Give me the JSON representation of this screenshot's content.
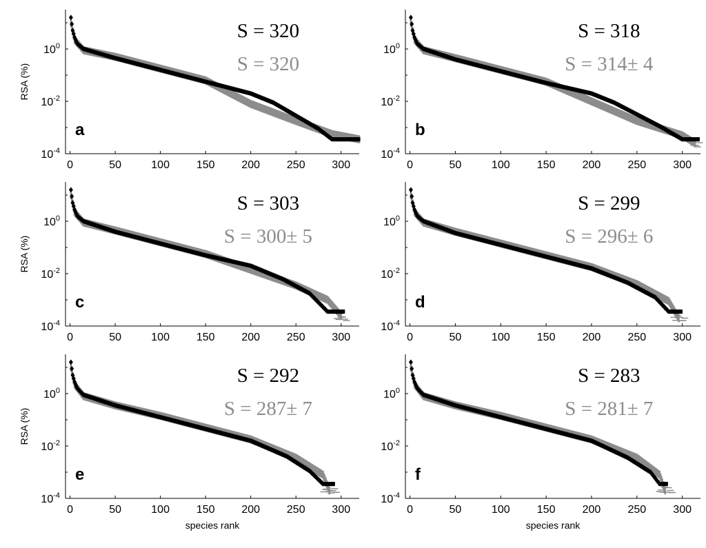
{
  "figure": {
    "xlabel": "species rank",
    "ylabel": "RSA (%)"
  },
  "colors": {
    "observed": "#000000",
    "model": "#8c8c8c",
    "axis": "#000000",
    "background": "#ffffff"
  },
  "chart_data": [
    {
      "panel": "a",
      "type": "scatter",
      "xlabel": "",
      "ylabel": "RSA (%)",
      "xlim": [
        -5,
        320
      ],
      "ylim_log10": [
        -4,
        1.5
      ],
      "xticks": [
        0,
        50,
        100,
        150,
        200,
        250,
        300
      ],
      "yticks": [
        "10^0",
        "10^-2",
        "10^-4"
      ],
      "observed_label": "S = 320",
      "model_label": "S = 320",
      "observed": {
        "S": 320,
        "profile": [
          [
            1,
            1.2
          ],
          [
            2,
            0.95
          ],
          [
            3,
            0.7
          ],
          [
            5,
            0.45
          ],
          [
            8,
            0.2
          ],
          [
            15,
            0.0
          ],
          [
            50,
            -0.35
          ],
          [
            100,
            -0.8
          ],
          [
            150,
            -1.25
          ],
          [
            200,
            -1.7
          ],
          [
            225,
            -2.05
          ],
          [
            250,
            -2.55
          ],
          [
            275,
            -3.05
          ],
          [
            290,
            -3.45
          ],
          [
            320,
            -3.45
          ]
        ]
      },
      "model": {
        "S": 320,
        "S_sd": 0,
        "profile": [
          [
            1,
            1.0
          ],
          [
            5,
            0.35
          ],
          [
            15,
            -0.05
          ],
          [
            50,
            -0.3
          ],
          [
            100,
            -0.75
          ],
          [
            150,
            -1.2
          ],
          [
            200,
            -2.1
          ],
          [
            250,
            -2.75
          ],
          [
            290,
            -3.25
          ],
          [
            320,
            -3.45
          ]
        ],
        "spread": 0.3
      }
    },
    {
      "panel": "b",
      "type": "scatter",
      "xlabel": "",
      "ylabel": "",
      "xlim": [
        -5,
        320
      ],
      "ylim_log10": [
        -4,
        1.5
      ],
      "xticks": [
        0,
        50,
        100,
        150,
        200,
        250,
        300
      ],
      "yticks": [
        "10^0",
        "10^-2",
        "10^-4"
      ],
      "observed_label": "S = 318",
      "model_label": "S = 314± 4",
      "observed": {
        "S": 318,
        "profile": [
          [
            1,
            1.2
          ],
          [
            2,
            0.95
          ],
          [
            3,
            0.7
          ],
          [
            5,
            0.45
          ],
          [
            8,
            0.2
          ],
          [
            15,
            0.0
          ],
          [
            50,
            -0.4
          ],
          [
            100,
            -0.85
          ],
          [
            150,
            -1.3
          ],
          [
            200,
            -1.7
          ],
          [
            225,
            -2.05
          ],
          [
            250,
            -2.5
          ],
          [
            275,
            -2.95
          ],
          [
            300,
            -3.45
          ],
          [
            318,
            -3.45
          ]
        ]
      },
      "model": {
        "S": 314,
        "S_sd": 4,
        "profile": [
          [
            1,
            1.0
          ],
          [
            5,
            0.35
          ],
          [
            15,
            -0.05
          ],
          [
            50,
            -0.35
          ],
          [
            100,
            -0.8
          ],
          [
            150,
            -1.25
          ],
          [
            200,
            -2.0
          ],
          [
            250,
            -2.75
          ],
          [
            300,
            -3.3
          ],
          [
            314,
            -3.6
          ]
        ],
        "spread": 0.3
      }
    },
    {
      "panel": "c",
      "type": "scatter",
      "xlabel": "",
      "ylabel": "RSA (%)",
      "xlim": [
        -5,
        320
      ],
      "ylim_log10": [
        -4,
        1.5
      ],
      "xticks": [
        0,
        50,
        100,
        150,
        200,
        250,
        300
      ],
      "yticks": [
        "10^0",
        "10^-2",
        "10^-4"
      ],
      "observed_label": "S = 303",
      "model_label": "S = 300± 5",
      "observed": {
        "S": 303,
        "profile": [
          [
            1,
            1.2
          ],
          [
            2,
            0.95
          ],
          [
            3,
            0.7
          ],
          [
            5,
            0.45
          ],
          [
            8,
            0.2
          ],
          [
            15,
            0.0
          ],
          [
            50,
            -0.4
          ],
          [
            100,
            -0.85
          ],
          [
            150,
            -1.3
          ],
          [
            200,
            -1.7
          ],
          [
            235,
            -2.2
          ],
          [
            265,
            -2.75
          ],
          [
            285,
            -3.45
          ],
          [
            303,
            -3.45
          ]
        ]
      },
      "model": {
        "S": 300,
        "S_sd": 5,
        "profile": [
          [
            1,
            1.0
          ],
          [
            5,
            0.35
          ],
          [
            15,
            -0.05
          ],
          [
            50,
            -0.35
          ],
          [
            100,
            -0.8
          ],
          [
            150,
            -1.25
          ],
          [
            200,
            -1.85
          ],
          [
            250,
            -2.45
          ],
          [
            285,
            -3.0
          ],
          [
            300,
            -3.6
          ]
        ],
        "spread": 0.3
      }
    },
    {
      "panel": "d",
      "type": "scatter",
      "xlabel": "",
      "ylabel": "",
      "xlim": [
        -5,
        320
      ],
      "ylim_log10": [
        -4,
        1.5
      ],
      "xticks": [
        0,
        50,
        100,
        150,
        200,
        250,
        300
      ],
      "yticks": [
        "10^0",
        "10^-2",
        "10^-4"
      ],
      "observed_label": "S = 299",
      "model_label": "S = 296± 6",
      "observed": {
        "S": 299,
        "profile": [
          [
            1,
            1.2
          ],
          [
            2,
            0.95
          ],
          [
            3,
            0.7
          ],
          [
            5,
            0.45
          ],
          [
            8,
            0.2
          ],
          [
            15,
            0.0
          ],
          [
            50,
            -0.45
          ],
          [
            100,
            -0.9
          ],
          [
            150,
            -1.35
          ],
          [
            200,
            -1.8
          ],
          [
            240,
            -2.35
          ],
          [
            270,
            -2.9
          ],
          [
            285,
            -3.45
          ],
          [
            299,
            -3.45
          ]
        ]
      },
      "model": {
        "S": 296,
        "S_sd": 6,
        "profile": [
          [
            1,
            1.0
          ],
          [
            5,
            0.35
          ],
          [
            15,
            -0.05
          ],
          [
            50,
            -0.4
          ],
          [
            100,
            -0.85
          ],
          [
            150,
            -1.3
          ],
          [
            200,
            -1.75
          ],
          [
            250,
            -2.4
          ],
          [
            285,
            -3.05
          ],
          [
            296,
            -3.7
          ]
        ],
        "spread": 0.3
      }
    },
    {
      "panel": "e",
      "type": "scatter",
      "xlabel": "species rank",
      "ylabel": "RSA (%)",
      "xlim": [
        -5,
        320
      ],
      "ylim_log10": [
        -4,
        1.5
      ],
      "xticks": [
        0,
        50,
        100,
        150,
        200,
        250,
        300
      ],
      "yticks": [
        "10^0",
        "10^-2",
        "10^-4"
      ],
      "observed_label": "S = 292",
      "model_label": "S = 287± 7",
      "observed": {
        "S": 292,
        "profile": [
          [
            1,
            1.2
          ],
          [
            2,
            0.95
          ],
          [
            3,
            0.7
          ],
          [
            5,
            0.45
          ],
          [
            8,
            0.2
          ],
          [
            15,
            -0.05
          ],
          [
            50,
            -0.45
          ],
          [
            100,
            -0.9
          ],
          [
            150,
            -1.35
          ],
          [
            200,
            -1.8
          ],
          [
            240,
            -2.4
          ],
          [
            265,
            -2.95
          ],
          [
            280,
            -3.45
          ],
          [
            292,
            -3.45
          ]
        ]
      },
      "model": {
        "S": 287,
        "S_sd": 7,
        "profile": [
          [
            1,
            1.0
          ],
          [
            5,
            0.35
          ],
          [
            15,
            -0.1
          ],
          [
            50,
            -0.45
          ],
          [
            100,
            -0.85
          ],
          [
            150,
            -1.3
          ],
          [
            200,
            -1.75
          ],
          [
            250,
            -2.45
          ],
          [
            280,
            -3.1
          ],
          [
            287,
            -3.7
          ]
        ],
        "spread": 0.3
      }
    },
    {
      "panel": "f",
      "type": "scatter",
      "xlabel": "species rank",
      "ylabel": "",
      "xlim": [
        -5,
        320
      ],
      "ylim_log10": [
        -4,
        1.5
      ],
      "xticks": [
        0,
        50,
        100,
        150,
        200,
        250,
        300
      ],
      "yticks": [
        "10^0",
        "10^-2",
        "10^-4"
      ],
      "observed_label": "S = 283",
      "model_label": "S = 281± 7",
      "observed": {
        "S": 283,
        "profile": [
          [
            1,
            1.2
          ],
          [
            2,
            0.95
          ],
          [
            3,
            0.7
          ],
          [
            5,
            0.45
          ],
          [
            8,
            0.2
          ],
          [
            15,
            -0.05
          ],
          [
            50,
            -0.45
          ],
          [
            100,
            -0.9
          ],
          [
            150,
            -1.35
          ],
          [
            200,
            -1.8
          ],
          [
            240,
            -2.45
          ],
          [
            265,
            -3.0
          ],
          [
            275,
            -3.45
          ],
          [
            283,
            -3.45
          ]
        ]
      },
      "model": {
        "S": 281,
        "S_sd": 7,
        "profile": [
          [
            1,
            1.0
          ],
          [
            5,
            0.35
          ],
          [
            15,
            -0.1
          ],
          [
            50,
            -0.45
          ],
          [
            100,
            -0.85
          ],
          [
            150,
            -1.3
          ],
          [
            200,
            -1.75
          ],
          [
            250,
            -2.45
          ],
          [
            275,
            -3.1
          ],
          [
            281,
            -3.7
          ]
        ],
        "spread": 0.3
      }
    }
  ]
}
